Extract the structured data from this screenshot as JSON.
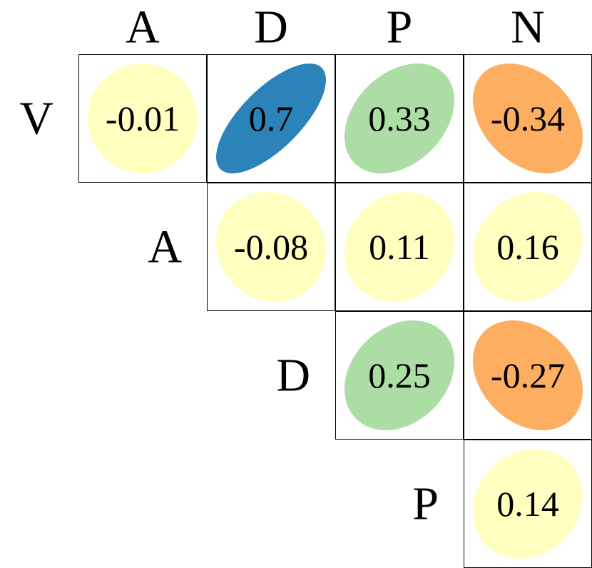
{
  "chart_data": {
    "type": "correlogram",
    "columns": [
      "A",
      "D",
      "P",
      "N"
    ],
    "rows": [
      "V",
      "A",
      "D",
      "P"
    ],
    "values": [
      [
        -0.01,
        0.7,
        0.33,
        -0.34
      ],
      [
        null,
        -0.08,
        0.11,
        0.16
      ],
      [
        null,
        null,
        0.25,
        -0.27
      ],
      [
        null,
        null,
        null,
        0.14
      ]
    ],
    "colors": [
      [
        "#ffffbf",
        "#2b83ba",
        "#abdda4",
        "#fdae61"
      ],
      [
        null,
        "#ffffbf",
        "#ffffbf",
        "#ffffbf"
      ],
      [
        null,
        null,
        "#abdda4",
        "#fdae61"
      ],
      [
        null,
        null,
        null,
        "#ffffbf"
      ]
    ]
  }
}
